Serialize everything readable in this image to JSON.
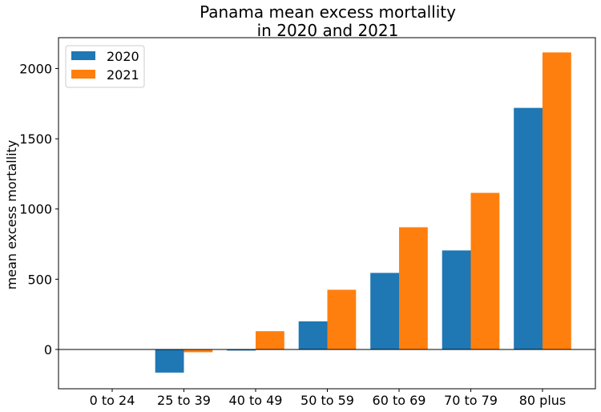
{
  "chart_data": {
    "type": "bar",
    "title_line1": "Panama mean excess mortallity",
    "title_line2": "in 2020 and 2021",
    "xlabel": "",
    "ylabel": "mean excess mortallity",
    "categories": [
      "0 to 24",
      "25 to 39",
      "40 to 49",
      "50 to 59",
      "60 to 69",
      "70 to 79",
      "80 plus"
    ],
    "series": [
      {
        "name": "2020",
        "color": "#1f77b4",
        "values": [
          0,
          -165,
          -8,
          200,
          545,
          705,
          1720
        ]
      },
      {
        "name": "2021",
        "color": "#ff7f0e",
        "values": [
          0,
          -20,
          130,
          425,
          870,
          1115,
          2115
        ]
      }
    ],
    "ylim": [
      -280,
      2220
    ],
    "yticks": [
      0,
      500,
      1000,
      1500,
      2000
    ],
    "ytick_labels": [
      "0",
      "500",
      "1000",
      "1500",
      "2000"
    ],
    "zero_line": true,
    "grid": false,
    "legend_position": "top-left"
  }
}
